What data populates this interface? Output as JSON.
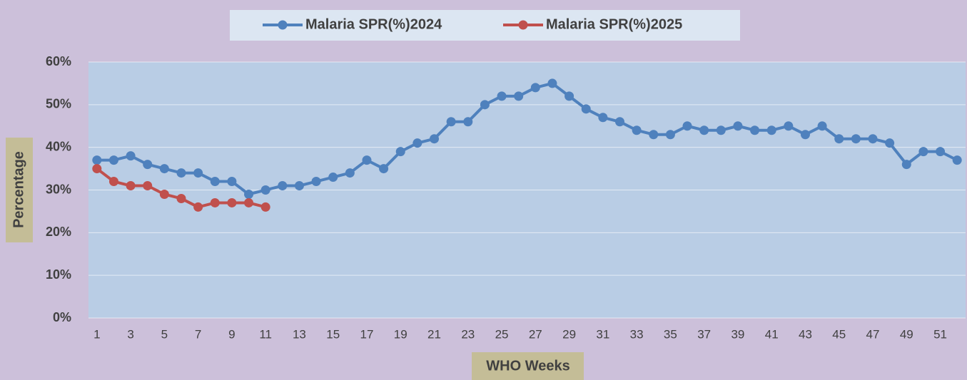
{
  "chart_data": {
    "type": "line",
    "categories": [
      1,
      null,
      3,
      null,
      5,
      null,
      7,
      null,
      9,
      null,
      11,
      null,
      13,
      null,
      15,
      null,
      17,
      null,
      19,
      null,
      21,
      null,
      23,
      null,
      25,
      null,
      27,
      null,
      29,
      null,
      31,
      null,
      33,
      null,
      35,
      null,
      37,
      null,
      39,
      null,
      41,
      null,
      43,
      null,
      45,
      null,
      47,
      null,
      49,
      null,
      51,
      null
    ],
    "series": [
      {
        "name": "Malaria SPR(%)2024",
        "color": "#4f81bd",
        "values": [
          37,
          37,
          38,
          36,
          35,
          34,
          34,
          32,
          32,
          29,
          30,
          31,
          31,
          32,
          33,
          34,
          37,
          35,
          39,
          41,
          42,
          46,
          46,
          50,
          52,
          52,
          54,
          55,
          52,
          49,
          47,
          46,
          44,
          43,
          43,
          45,
          44,
          44,
          45,
          44,
          44,
          45,
          43,
          45,
          42,
          42,
          42,
          41,
          36,
          39,
          39,
          37
        ]
      },
      {
        "name": "Malaria SPR(%)2025",
        "color": "#c0504d",
        "values": [
          35,
          32,
          31,
          31,
          29,
          28,
          26,
          27,
          27,
          27,
          26,
          null,
          null,
          null,
          null,
          null,
          null,
          null,
          null,
          null,
          null,
          null,
          null,
          null,
          null,
          null,
          null,
          null,
          null,
          null,
          null,
          null,
          null,
          null,
          null,
          null,
          null,
          null,
          null,
          null,
          null,
          null,
          null,
          null,
          null,
          null,
          null,
          null,
          null,
          null,
          null,
          null
        ]
      }
    ],
    "ylim": [
      0,
      60
    ],
    "yticks": [
      {
        "value": 0,
        "label": "0%"
      },
      {
        "value": 10,
        "label": "10%"
      },
      {
        "value": 20,
        "label": "20%"
      },
      {
        "value": 30,
        "label": "30%"
      },
      {
        "value": 40,
        "label": "40%"
      },
      {
        "value": 50,
        "label": "50%"
      },
      {
        "value": 60,
        "label": "60%"
      }
    ],
    "xlabel": "WHO Weeks",
    "ylabel": "Percentage",
    "grid": true,
    "legend": "top"
  }
}
